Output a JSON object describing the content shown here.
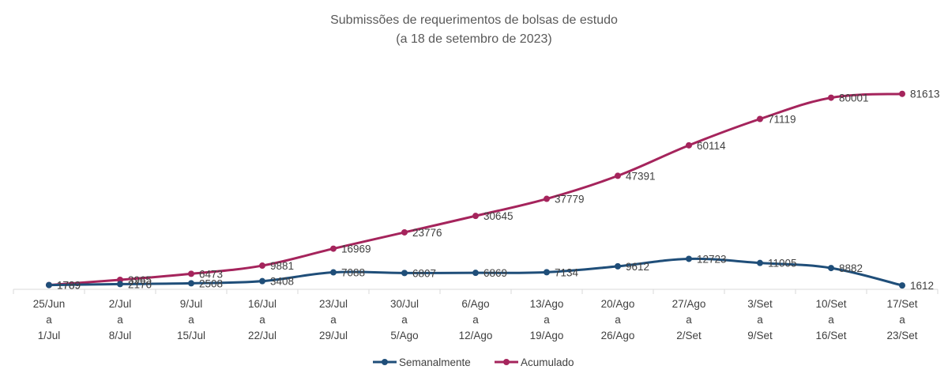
{
  "chart_data": {
    "type": "line",
    "title": "Submissões de requerimentos de bolsas de estudo",
    "subtitle": "(a 18 de setembro de 2023)",
    "categories": [
      [
        "25/Jun",
        "a",
        "1/Jul"
      ],
      [
        "2/Jul",
        "a",
        "8/Jul"
      ],
      [
        "9/Jul",
        "a",
        "15/Jul"
      ],
      [
        "16/Jul",
        "a",
        "22/Jul"
      ],
      [
        "23/Jul",
        "a",
        "29/Jul"
      ],
      [
        "30/Jul",
        "a",
        "5/Ago"
      ],
      [
        "6/Ago",
        "a",
        "12/Ago"
      ],
      [
        "13/Ago",
        "a",
        "19/Ago"
      ],
      [
        "20/Ago",
        "a",
        "26/Ago"
      ],
      [
        "27/Ago",
        "a",
        "2/Set"
      ],
      [
        "3/Set",
        "a",
        "9/Set"
      ],
      [
        "10/Set",
        "a",
        "16/Set"
      ],
      [
        "17/Set",
        "a",
        "23/Set"
      ]
    ],
    "series": [
      {
        "name": "Semanalmente",
        "color": "#1F4E79",
        "values": [
          1789,
          2176,
          2508,
          3408,
          7088,
          6807,
          6869,
          7134,
          9612,
          12723,
          11005,
          8882,
          1612
        ]
      },
      {
        "name": "Acumulado",
        "color": "#A5245C",
        "values": [
          1789,
          3965,
          6473,
          9881,
          16969,
          23776,
          30645,
          37779,
          47391,
          60114,
          71119,
          80001,
          81613
        ]
      }
    ],
    "ylim": [
      0,
      100000
    ],
    "grid": false,
    "legend": "bottom"
  }
}
